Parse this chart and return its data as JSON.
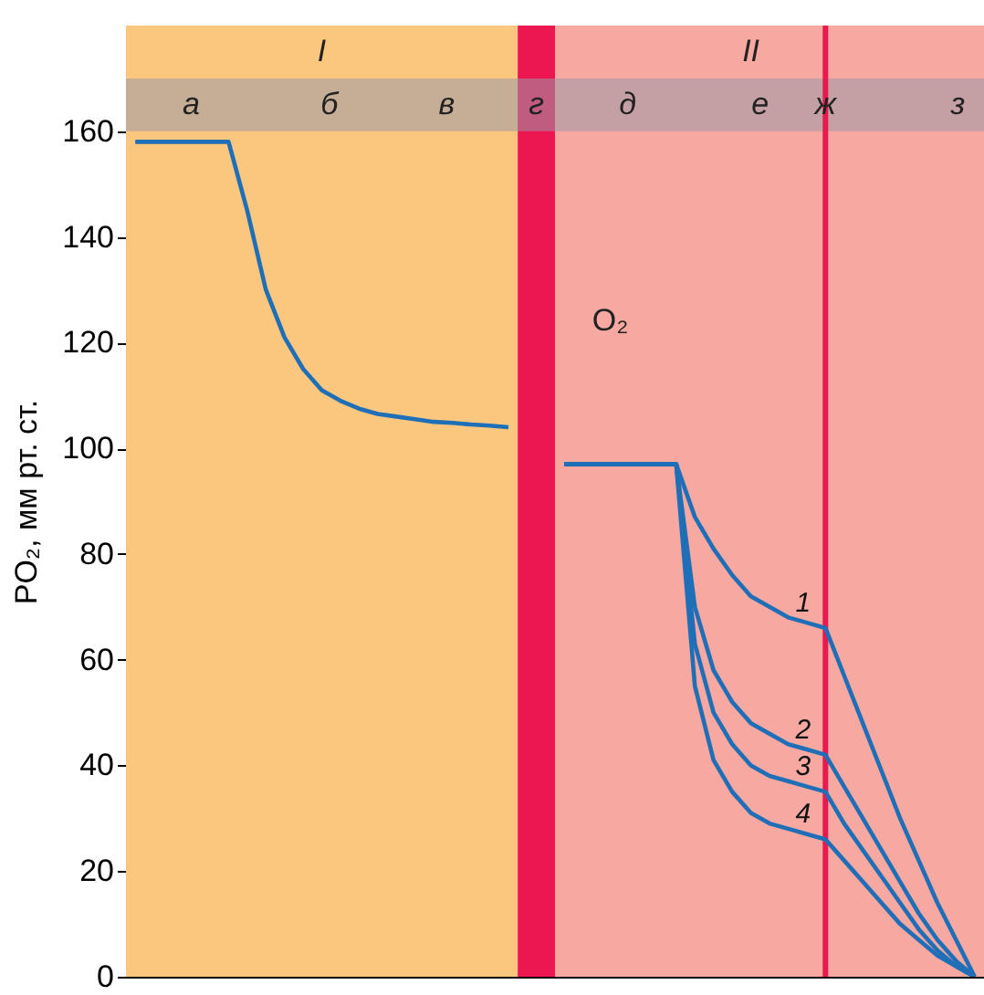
{
  "chart_data": {
    "type": "line",
    "ylabel": "PO₂, мм рт. ст.",
    "ylim": [
      0,
      180
    ],
    "yticks": [
      0,
      20,
      40,
      60,
      80,
      100,
      120,
      140,
      160
    ],
    "tick_labels": "y",
    "line_style": "solid",
    "marker": "none",
    "categories": [
      null,
      null,
      null,
      null,
      null,
      null,
      null,
      null,
      null,
      null,
      null,
      null,
      null,
      null,
      null,
      null,
      null,
      null,
      null,
      null,
      null,
      null,
      null,
      null,
      null,
      null,
      null,
      null,
      null,
      null,
      null,
      null,
      null,
      null,
      null,
      null,
      null,
      null,
      null,
      null,
      null,
      null,
      null,
      null,
      null,
      null
    ],
    "series": [
      {
        "color": "#1f6fb8",
        "values": [
          158,
          158,
          158,
          158,
          158,
          158,
          145,
          130,
          121,
          115,
          111,
          109,
          107.5,
          106.5,
          106,
          105.5,
          105,
          104.8,
          104.5,
          104.3,
          104,
          null,
          null,
          null,
          null,
          null,
          null,
          null,
          null,
          null,
          null,
          null,
          null,
          null,
          null,
          null,
          null,
          null,
          null,
          null,
          null,
          null,
          null,
          null,
          null,
          null
        ]
      },
      {
        "name": "1",
        "color": "#1f6fb8",
        "values": [
          null,
          null,
          null,
          null,
          null,
          null,
          null,
          null,
          null,
          null,
          null,
          null,
          null,
          null,
          null,
          null,
          null,
          null,
          null,
          null,
          null,
          null,
          null,
          97,
          97,
          97,
          97,
          97,
          97,
          97,
          87,
          81,
          76,
          72,
          70,
          68,
          67,
          66,
          57,
          48,
          39,
          30,
          22,
          14,
          7,
          0
        ]
      },
      {
        "name": "2",
        "color": "#1f6fb8",
        "values": [
          null,
          null,
          null,
          null,
          null,
          null,
          null,
          null,
          null,
          null,
          null,
          null,
          null,
          null,
          null,
          null,
          null,
          null,
          null,
          null,
          null,
          null,
          null,
          97,
          97,
          97,
          97,
          97,
          97,
          97,
          70,
          58,
          52,
          48,
          46,
          44,
          43,
          42,
          36,
          30,
          24,
          18,
          12,
          7,
          3,
          0
        ]
      },
      {
        "name": "3",
        "color": "#1f6fb8",
        "values": [
          null,
          null,
          null,
          null,
          null,
          null,
          null,
          null,
          null,
          null,
          null,
          null,
          null,
          null,
          null,
          null,
          null,
          null,
          null,
          null,
          null,
          null,
          null,
          97,
          97,
          97,
          97,
          97,
          97,
          97,
          63,
          50,
          44,
          40,
          38,
          37,
          36,
          35,
          29,
          24,
          19,
          14,
          9,
          5,
          2,
          0
        ]
      },
      {
        "name": "4",
        "color": "#1f6fb8",
        "values": [
          null,
          null,
          null,
          null,
          null,
          null,
          null,
          null,
          null,
          null,
          null,
          null,
          null,
          null,
          null,
          null,
          null,
          null,
          null,
          null,
          null,
          null,
          null,
          97,
          97,
          97,
          97,
          97,
          97,
          97,
          55,
          41,
          35,
          31,
          29,
          28,
          27,
          26,
          22,
          18,
          14,
          10,
          7,
          4,
          2,
          0
        ]
      }
    ],
    "bands": [
      {
        "axis": "y",
        "from": 160,
        "to": 170,
        "color": "#9a98a8"
      }
    ],
    "annotations": [
      "I",
      "II",
      "а",
      "б",
      "в",
      "г",
      "д",
      "е",
      "ж",
      "з",
      "O₂"
    ]
  }
}
